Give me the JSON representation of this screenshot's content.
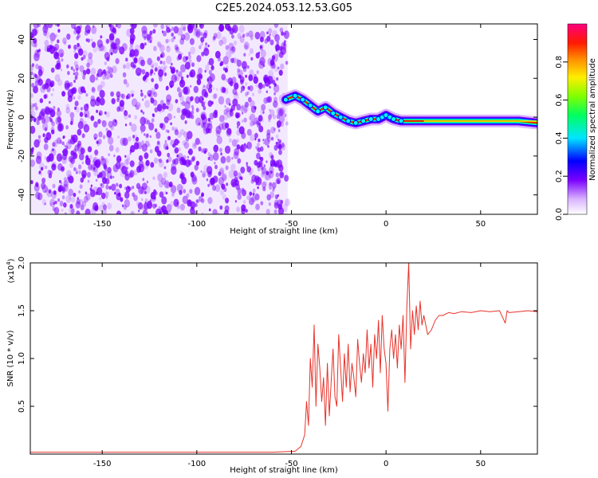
{
  "title": "C2E5.2024.053.12.53.G05",
  "colorbar": {
    "label": "Normalized spectral amplitude",
    "ticks": [
      "0.0",
      "0.2",
      "0.4",
      "0.6",
      "0.8"
    ]
  },
  "chart_data": [
    {
      "type": "heatmap",
      "xlabel": "Height of straight line (km)",
      "ylabel": "Frequency (Hz)",
      "xlim": [
        -188,
        80
      ],
      "ylim": [
        -50,
        48
      ],
      "xticks": [
        -150,
        -100,
        -50,
        0,
        50
      ],
      "yticks": [
        -40,
        -20,
        0,
        20,
        40
      ],
      "xtick_labels": [
        "-150",
        "-100",
        "-50",
        "0",
        "50"
      ],
      "ytick_labels": [
        "-40",
        "-20",
        "0",
        "20",
        "40"
      ],
      "noise_region_x": [
        -188,
        -52
      ],
      "noise_color": "#7b00ff",
      "signal_ridge": {
        "x": [
          -53,
          -48,
          -44,
          -40,
          -36,
          -32,
          -28,
          -24,
          -20,
          -16,
          -12,
          -8,
          -4,
          -2,
          0,
          2,
          4,
          8,
          15,
          25,
          40,
          55,
          70,
          80
        ],
        "y": [
          9,
          11,
          9,
          6,
          3,
          5,
          2,
          0,
          -2,
          -3,
          -2,
          -1,
          -1,
          0,
          1,
          0,
          -1,
          -2,
          -2,
          -2,
          -2,
          -2,
          -2,
          -3
        ]
      }
    },
    {
      "type": "line",
      "xlabel": "Height of straight line (km)",
      "ylabel": "SNR (10 * v/v)",
      "multiplier_label": "(x10",
      "multiplier_exp": "4",
      "multiplier_close": ")",
      "xlim": [
        -188,
        80
      ],
      "ylim": [
        0,
        2.0
      ],
      "xticks": [
        -150,
        -100,
        -50,
        0,
        50
      ],
      "yticks": [
        0.5,
        1.0,
        1.5,
        2.0
      ],
      "xtick_labels": [
        "-150",
        "-100",
        "-50",
        "0",
        "50"
      ],
      "ytick_labels": [
        "0.5",
        "1.0",
        "1.5",
        "2.0"
      ],
      "series": [
        {
          "color": "#e8322a",
          "x": [
            -188,
            -150,
            -100,
            -60,
            -48,
            -45,
            -43,
            -42,
            -41,
            -40,
            -39,
            -38,
            -37,
            -36,
            -35,
            -34,
            -33,
            -32,
            -31,
            -30,
            -29,
            -28,
            -27,
            -26,
            -25,
            -24,
            -23,
            -22,
            -21,
            -20,
            -19,
            -18,
            -17,
            -16,
            -15,
            -14,
            -13,
            -12,
            -11,
            -10,
            -9,
            -8,
            -7,
            -6,
            -5,
            -4,
            -3,
            -2,
            -1,
            0,
            1,
            2,
            3,
            4,
            5,
            6,
            7,
            8,
            9,
            10,
            11,
            12,
            13,
            14,
            15,
            16,
            17,
            18,
            19,
            20,
            22,
            24,
            26,
            28,
            30,
            33,
            36,
            40,
            45,
            50,
            55,
            60,
            63,
            64,
            65,
            70,
            75,
            80
          ],
          "y": [
            0.02,
            0.02,
            0.02,
            0.02,
            0.03,
            0.08,
            0.2,
            0.55,
            0.3,
            1.0,
            0.7,
            1.35,
            0.5,
            1.15,
            0.9,
            0.55,
            0.8,
            0.3,
            0.95,
            0.4,
            0.75,
            1.1,
            0.6,
            0.5,
            1.25,
            0.9,
            0.55,
            1.05,
            0.7,
            1.15,
            0.65,
            0.95,
            0.8,
            0.6,
            1.2,
            0.95,
            0.75,
            1.05,
            0.85,
            1.3,
            0.9,
            1.15,
            0.7,
            1.25,
            1.0,
            1.4,
            0.85,
            1.45,
            1.1,
            0.95,
            0.45,
            1.1,
            1.3,
            1.0,
            1.25,
            0.9,
            1.35,
            1.1,
            1.45,
            0.75,
            1.55,
            2.0,
            1.1,
            1.5,
            1.25,
            1.55,
            1.3,
            1.6,
            1.35,
            1.45,
            1.25,
            1.3,
            1.4,
            1.45,
            1.45,
            1.48,
            1.47,
            1.49,
            1.48,
            1.5,
            1.49,
            1.5,
            1.37,
            1.5,
            1.48,
            1.49,
            1.5,
            1.49
          ]
        }
      ]
    }
  ]
}
